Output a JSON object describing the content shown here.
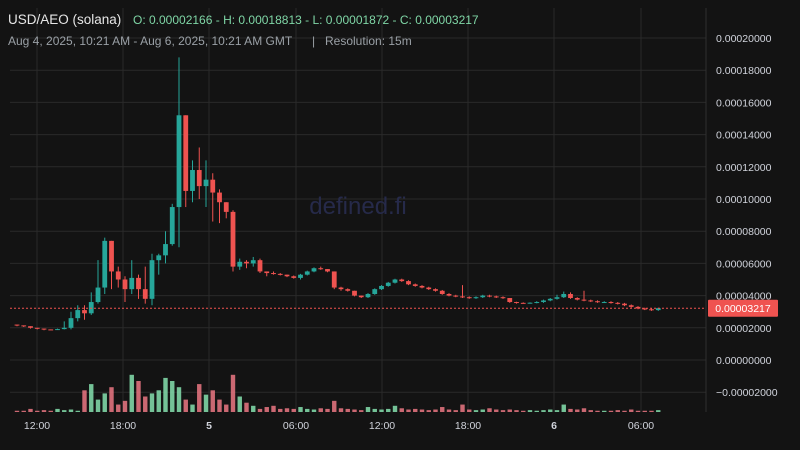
{
  "header": {
    "pair": "USD/AEO (solana)",
    "ohlc": "O: 0.00002166 - H: 0.00018813 - L: 0.00001872 - C: 0.00003217",
    "range": "Aug 4, 2025, 10:21 AM - Aug 6, 2025, 10:21 AM GMT",
    "separator": "|",
    "resolution": "Resolution: 15m"
  },
  "watermark": "defined.fi",
  "colors": {
    "up": "#26a69a",
    "up_bright": "#7fd6a6",
    "down": "#ef5350",
    "down_light": "#e0727d",
    "grid": "#2a2a2a",
    "bg": "#131313",
    "last_price": "#ef5350"
  },
  "last_price_label": "0.00003217",
  "chart_data": {
    "type": "candlestick",
    "resolution": "15m",
    "x_ticks": [
      "12:00",
      "18:00",
      "5",
      "06:00",
      "12:00",
      "18:00",
      "6",
      "06:00"
    ],
    "y_ticks": [
      "0.00020000",
      "0.00018000",
      "0.00016000",
      "0.00014000",
      "0.00012000",
      "0.00010000",
      "0.00008000",
      "0.00006000",
      "0.00004000",
      "0.00002000",
      "0.00000000",
      "−0.00002000"
    ],
    "ylim": [
      -2.2e-05,
      0.000205
    ],
    "last_price": 3.217e-05,
    "candles": [
      [
        0,
        2.2e-05,
        2.15e-05,
        2.2e-05,
        2.1e-05
      ],
      [
        1,
        2.15e-05,
        2.1e-05,
        2.15e-05,
        2.05e-05
      ],
      [
        2,
        2.1e-05,
        2e-05,
        2.1e-05,
        1.95e-05
      ],
      [
        3,
        2e-05,
        1.95e-05,
        2e-05,
        1.9e-05
      ],
      [
        4,
        1.95e-05,
        1.9e-05,
        1.95e-05,
        1.85e-05
      ],
      [
        5,
        1.9e-05,
        1.88e-05,
        1.9e-05,
        1.87e-05
      ],
      [
        6,
        1.88e-05,
        1.92e-05,
        1.95e-05,
        1.87e-05
      ],
      [
        7,
        1.92e-05,
        2e-05,
        2.4e-05,
        1.9e-05
      ],
      [
        8,
        2e-05,
        2.6e-05,
        3e-05,
        1.9e-05
      ],
      [
        9,
        2.6e-05,
        3.1e-05,
        3.4e-05,
        2.4e-05
      ],
      [
        10,
        3.1e-05,
        2.9e-05,
        3.4e-05,
        2.5e-05
      ],
      [
        11,
        2.9e-05,
        3.6e-05,
        4.2e-05,
        2.8e-05
      ],
      [
        12,
        3.6e-05,
        4.5e-05,
        6.2e-05,
        3.5e-05
      ],
      [
        13,
        4.5e-05,
        7.4e-05,
        7.6e-05,
        4.1e-05
      ],
      [
        14,
        7.4e-05,
        5.5e-05,
        7.4e-05,
        4.4e-05
      ],
      [
        15,
        5.5e-05,
        5e-05,
        5.8e-05,
        4.5e-05
      ],
      [
        16,
        5e-05,
        4.4e-05,
        5.2e-05,
        3.6e-05
      ],
      [
        17,
        4.4e-05,
        5.1e-05,
        6.2e-05,
        4.1e-05
      ],
      [
        18,
        5.1e-05,
        4.4e-05,
        5.3e-05,
        3.8e-05
      ],
      [
        19,
        4.4e-05,
        3.8e-05,
        5.8e-05,
        3.5e-05
      ],
      [
        20,
        3.8e-05,
        6.2e-05,
        6.6e-05,
        3.4e-05
      ],
      [
        21,
        6.2e-05,
        6.5e-05,
        6.6e-05,
        5.3e-05
      ],
      [
        22,
        6.5e-05,
        7.2e-05,
        8e-05,
        6e-05
      ],
      [
        23,
        7.2e-05,
        9.5e-05,
        9.7e-05,
        7.1e-05
      ],
      [
        24,
        9.5e-05,
        0.000152,
        0.000188,
        7e-05
      ],
      [
        25,
        0.000152,
        0.000105,
        0.000152,
        9.5e-05
      ],
      [
        26,
        0.000105,
        0.000118,
        0.000124,
        9.8e-05
      ],
      [
        27,
        0.000118,
        0.000108,
        0.000132,
        0.0001
      ],
      [
        28,
        0.000108,
        0.000112,
        0.000124,
        9.5e-05
      ],
      [
        29,
        0.000112,
        0.000104,
        0.000116,
        8.6e-05
      ],
      [
        30,
        0.000104,
        9.8e-05,
        0.000106,
        8.5e-05
      ],
      [
        31,
        9.8e-05,
        9.2e-05,
        9.8e-05,
        8.8e-05
      ],
      [
        32,
        9.2e-05,
        5.8e-05,
        9.3e-05,
        5.5e-05
      ],
      [
        33,
        5.8e-05,
        6.1e-05,
        6.3e-05,
        5.6e-05
      ],
      [
        34,
        6.1e-05,
        6e-05,
        6.2e-05,
        5.7e-05
      ],
      [
        35,
        6e-05,
        6.2e-05,
        6.4e-05,
        5.8e-05
      ],
      [
        36,
        6.2e-05,
        5.5e-05,
        6.3e-05,
        5.4e-05
      ],
      [
        37,
        5.5e-05,
        5.4e-05,
        5.5e-05,
        5.2e-05
      ],
      [
        38,
        5.4e-05,
        5.35e-05,
        5.5e-05,
        5.3e-05
      ],
      [
        39,
        5.35e-05,
        5.3e-05,
        5.4e-05,
        5.25e-05
      ],
      [
        40,
        5.3e-05,
        5.2e-05,
        5.3e-05,
        5.15e-05
      ],
      [
        41,
        5.2e-05,
        5.1e-05,
        5.25e-05,
        5.05e-05
      ],
      [
        42,
        5.1e-05,
        5.3e-05,
        5.35e-05,
        5e-05
      ],
      [
        43,
        5.3e-05,
        5.5e-05,
        5.55e-05,
        5.25e-05
      ],
      [
        44,
        5.5e-05,
        5.7e-05,
        5.75e-05,
        5.45e-05
      ],
      [
        45,
        5.7e-05,
        5.65e-05,
        5.8e-05,
        5.6e-05
      ],
      [
        46,
        5.65e-05,
        5.5e-05,
        5.65e-05,
        5.45e-05
      ],
      [
        47,
        5.5e-05,
        4.5e-05,
        5.5e-05,
        4.4e-05
      ],
      [
        48,
        4.5e-05,
        4.4e-05,
        4.55e-05,
        4.3e-05
      ],
      [
        49,
        4.4e-05,
        4.3e-05,
        4.45e-05,
        4.25e-05
      ],
      [
        50,
        4.3e-05,
        4e-05,
        4.3e-05,
        3.95e-05
      ],
      [
        51,
        4e-05,
        3.9e-05,
        4e-05,
        3.85e-05
      ],
      [
        52,
        3.9e-05,
        4.1e-05,
        4.15e-05,
        3.85e-05
      ],
      [
        53,
        4.1e-05,
        4.4e-05,
        4.45e-05,
        4.05e-05
      ],
      [
        54,
        4.4e-05,
        4.6e-05,
        4.65e-05,
        4.35e-05
      ],
      [
        55,
        4.6e-05,
        4.8e-05,
        4.85e-05,
        4.55e-05
      ],
      [
        56,
        4.8e-05,
        5e-05,
        5.05e-05,
        4.75e-05
      ],
      [
        57,
        5e-05,
        4.9e-05,
        5.05e-05,
        4.85e-05
      ],
      [
        58,
        4.9e-05,
        4.7e-05,
        4.95e-05,
        4.65e-05
      ],
      [
        59,
        4.7e-05,
        4.6e-05,
        4.75e-05,
        4.55e-05
      ],
      [
        60,
        4.6e-05,
        4.5e-05,
        4.65e-05,
        4.45e-05
      ],
      [
        61,
        4.5e-05,
        4.4e-05,
        4.55e-05,
        4.35e-05
      ],
      [
        62,
        4.4e-05,
        4.3e-05,
        4.45e-05,
        4.25e-05
      ],
      [
        63,
        4.3e-05,
        4.1e-05,
        4.35e-05,
        4.05e-05
      ],
      [
        64,
        4.1e-05,
        4e-05,
        4.15e-05,
        3.95e-05
      ],
      [
        65,
        4e-05,
        3.95e-05,
        4.05e-05,
        3.9e-05
      ],
      [
        66,
        3.95e-05,
        3.9e-05,
        4.65e-05,
        3.85e-05
      ],
      [
        67,
        3.9e-05,
        3.85e-05,
        3.95e-05,
        3.8e-05
      ],
      [
        68,
        3.85e-05,
        3.9e-05,
        3.95e-05,
        3.8e-05
      ],
      [
        69,
        3.9e-05,
        4e-05,
        4.05e-05,
        3.85e-05
      ],
      [
        70,
        4e-05,
        3.95e-05,
        4.05e-05,
        3.9e-05
      ],
      [
        71,
        3.95e-05,
        3.9e-05,
        4e-05,
        3.85e-05
      ],
      [
        72,
        3.9e-05,
        3.85e-05,
        3.95e-05,
        3.8e-05
      ],
      [
        73,
        3.85e-05,
        3.6e-05,
        3.85e-05,
        3.55e-05
      ],
      [
        74,
        3.6e-05,
        3.55e-05,
        3.62e-05,
        3.5e-05
      ],
      [
        75,
        3.55e-05,
        3.52e-05,
        3.58e-05,
        3.5e-05
      ],
      [
        76,
        3.52e-05,
        3.56e-05,
        3.58e-05,
        3.5e-05
      ],
      [
        77,
        3.56e-05,
        3.6e-05,
        3.65e-05,
        3.52e-05
      ],
      [
        78,
        3.6e-05,
        3.7e-05,
        3.75e-05,
        3.55e-05
      ],
      [
        79,
        3.7e-05,
        3.8e-05,
        3.85e-05,
        3.65e-05
      ],
      [
        80,
        3.8e-05,
        3.9e-05,
        4.05e-05,
        3.75e-05
      ],
      [
        81,
        3.9e-05,
        4.1e-05,
        4.25e-05,
        3.85e-05
      ],
      [
        82,
        4.1e-05,
        3.85e-05,
        4.2e-05,
        3.8e-05
      ],
      [
        83,
        3.85e-05,
        3.75e-05,
        3.9e-05,
        3.7e-05
      ],
      [
        84,
        3.75e-05,
        3.7e-05,
        4.3e-05,
        3.65e-05
      ],
      [
        85,
        3.7e-05,
        3.65e-05,
        3.75e-05,
        3.6e-05
      ],
      [
        86,
        3.65e-05,
        3.6e-05,
        3.7e-05,
        3.55e-05
      ],
      [
        87,
        3.6e-05,
        3.6e-05,
        3.65e-05,
        3.55e-05
      ],
      [
        88,
        3.6e-05,
        3.55e-05,
        3.65e-05,
        3.5e-05
      ],
      [
        89,
        3.55e-05,
        3.5e-05,
        3.6e-05,
        3.45e-05
      ],
      [
        90,
        3.5e-05,
        3.4e-05,
        3.55e-05,
        3.35e-05
      ],
      [
        91,
        3.4e-05,
        3.3e-05,
        3.45e-05,
        3.25e-05
      ],
      [
        92,
        3.3e-05,
        3.2e-05,
        3.35e-05,
        3.15e-05
      ],
      [
        93,
        3.2e-05,
        3.15e-05,
        3.25e-05,
        3.1e-05
      ],
      [
        94,
        3.15e-05,
        3.1e-05,
        3.2e-05,
        3.05e-05
      ],
      [
        95,
        3.1e-05,
        3.217e-05,
        3.25e-05,
        3.05e-05
      ]
    ],
    "volume_scale": "relative",
    "volumes": [
      [
        0,
        0.02
      ],
      [
        1,
        0.02
      ],
      [
        2,
        0.05
      ],
      [
        3,
        0.02
      ],
      [
        4,
        0.03
      ],
      [
        5,
        0.02
      ],
      [
        6,
        0.05
      ],
      [
        7,
        0.03
      ],
      [
        8,
        0.04
      ],
      [
        9,
        0.02
      ],
      [
        10,
        0.35
      ],
      [
        11,
        0.45
      ],
      [
        12,
        0.2
      ],
      [
        13,
        0.3
      ],
      [
        14,
        0.4
      ],
      [
        15,
        0.12
      ],
      [
        16,
        0.18
      ],
      [
        17,
        0.6
      ],
      [
        18,
        0.5
      ],
      [
        19,
        0.25
      ],
      [
        20,
        0.3
      ],
      [
        21,
        0.35
      ],
      [
        22,
        0.55
      ],
      [
        23,
        0.5
      ],
      [
        24,
        0.4
      ],
      [
        25,
        0.2
      ],
      [
        26,
        0.12
      ],
      [
        27,
        0.45
      ],
      [
        28,
        0.28
      ],
      [
        29,
        0.35
      ],
      [
        30,
        0.2
      ],
      [
        31,
        0.12
      ],
      [
        32,
        0.6
      ],
      [
        33,
        0.25
      ],
      [
        34,
        0.15
      ],
      [
        35,
        0.1
      ],
      [
        36,
        0.05
      ],
      [
        37,
        0.08
      ],
      [
        38,
        0.1
      ],
      [
        39,
        0.05
      ],
      [
        40,
        0.06
      ],
      [
        41,
        0.05
      ],
      [
        42,
        0.08
      ],
      [
        43,
        0.05
      ],
      [
        44,
        0.04
      ],
      [
        45,
        0.06
      ],
      [
        46,
        0.05
      ],
      [
        47,
        0.18
      ],
      [
        48,
        0.06
      ],
      [
        49,
        0.05
      ],
      [
        50,
        0.04
      ],
      [
        51,
        0.03
      ],
      [
        52,
        0.08
      ],
      [
        53,
        0.05
      ],
      [
        54,
        0.04
      ],
      [
        55,
        0.05
      ],
      [
        56,
        0.1
      ],
      [
        57,
        0.06
      ],
      [
        58,
        0.04
      ],
      [
        59,
        0.05
      ],
      [
        60,
        0.04
      ],
      [
        61,
        0.03
      ],
      [
        62,
        0.04
      ],
      [
        63,
        0.08
      ],
      [
        64,
        0.04
      ],
      [
        65,
        0.03
      ],
      [
        66,
        0.12
      ],
      [
        67,
        0.04
      ],
      [
        68,
        0.03
      ],
      [
        69,
        0.04
      ],
      [
        70,
        0.06
      ],
      [
        71,
        0.04
      ],
      [
        72,
        0.03
      ],
      [
        73,
        0.04
      ],
      [
        74,
        0.03
      ],
      [
        75,
        0.02
      ],
      [
        76,
        0.03
      ],
      [
        77,
        0.02
      ],
      [
        78,
        0.03
      ],
      [
        79,
        0.04
      ],
      [
        80,
        0.03
      ],
      [
        81,
        0.12
      ],
      [
        82,
        0.05
      ],
      [
        83,
        0.04
      ],
      [
        84,
        0.06
      ],
      [
        85,
        0.03
      ],
      [
        86,
        0.02
      ],
      [
        87,
        0.02
      ],
      [
        88,
        0.02
      ],
      [
        89,
        0.03
      ],
      [
        90,
        0.02
      ],
      [
        91,
        0.04
      ],
      [
        92,
        0.02
      ],
      [
        93,
        0.02
      ],
      [
        94,
        0.02
      ],
      [
        95,
        0.03
      ]
    ]
  }
}
